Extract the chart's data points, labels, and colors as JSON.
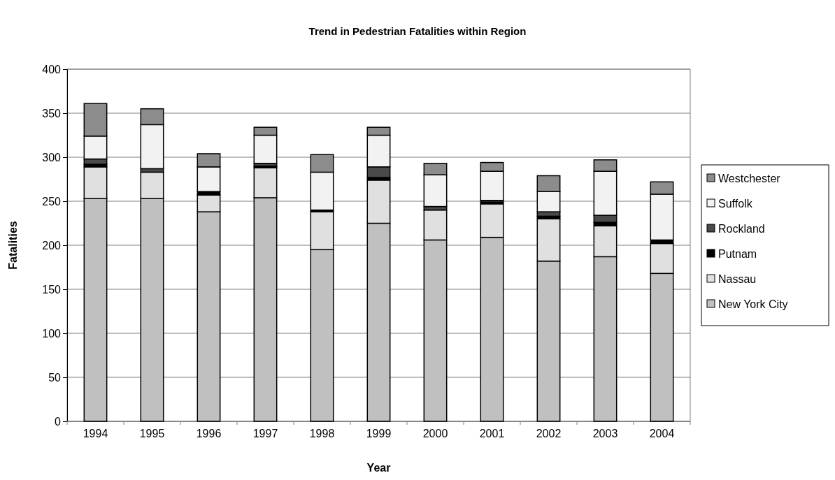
{
  "chart_data": {
    "type": "bar",
    "title": "Trend in Pedestrian Fatalities within Region",
    "xlabel": "Year",
    "ylabel": "Fatalities",
    "categories": [
      "1994",
      "1995",
      "1996",
      "1997",
      "1998",
      "1999",
      "2000",
      "2001",
      "2002",
      "2003",
      "2004"
    ],
    "stacked": true,
    "ylim": [
      0,
      400
    ],
    "yticks": [
      0,
      50,
      100,
      150,
      200,
      250,
      300,
      350,
      400
    ],
    "grid": "y",
    "legend": "right",
    "series": [
      {
        "name": "New York City",
        "color": "#c0c0c0",
        "values": [
          253,
          253,
          238,
          254,
          195,
          225,
          206,
          209,
          182,
          187,
          168
        ]
      },
      {
        "name": "Nassau",
        "color": "#e0e0e0",
        "values": [
          36,
          30,
          19,
          34,
          43,
          49,
          34,
          38,
          48,
          35,
          34
        ]
      },
      {
        "name": "Putnam",
        "color": "#000000",
        "values": [
          3,
          null,
          4,
          2,
          2,
          3,
          null,
          2,
          3,
          4,
          4
        ]
      },
      {
        "name": "Rockland",
        "color": "#4a4a4a",
        "values": [
          6,
          4,
          0,
          3,
          null,
          12,
          4,
          2,
          5,
          8,
          null
        ]
      },
      {
        "name": "Suffolk",
        "color": "#f2f2f2",
        "values": [
          26,
          50,
          28,
          32,
          43,
          36,
          36,
          33,
          23,
          50,
          52
        ]
      },
      {
        "name": "Westchester",
        "color": "#8c8c8c",
        "values": [
          37,
          18,
          15,
          9,
          20,
          9,
          13,
          10,
          18,
          13,
          14
        ]
      }
    ]
  }
}
